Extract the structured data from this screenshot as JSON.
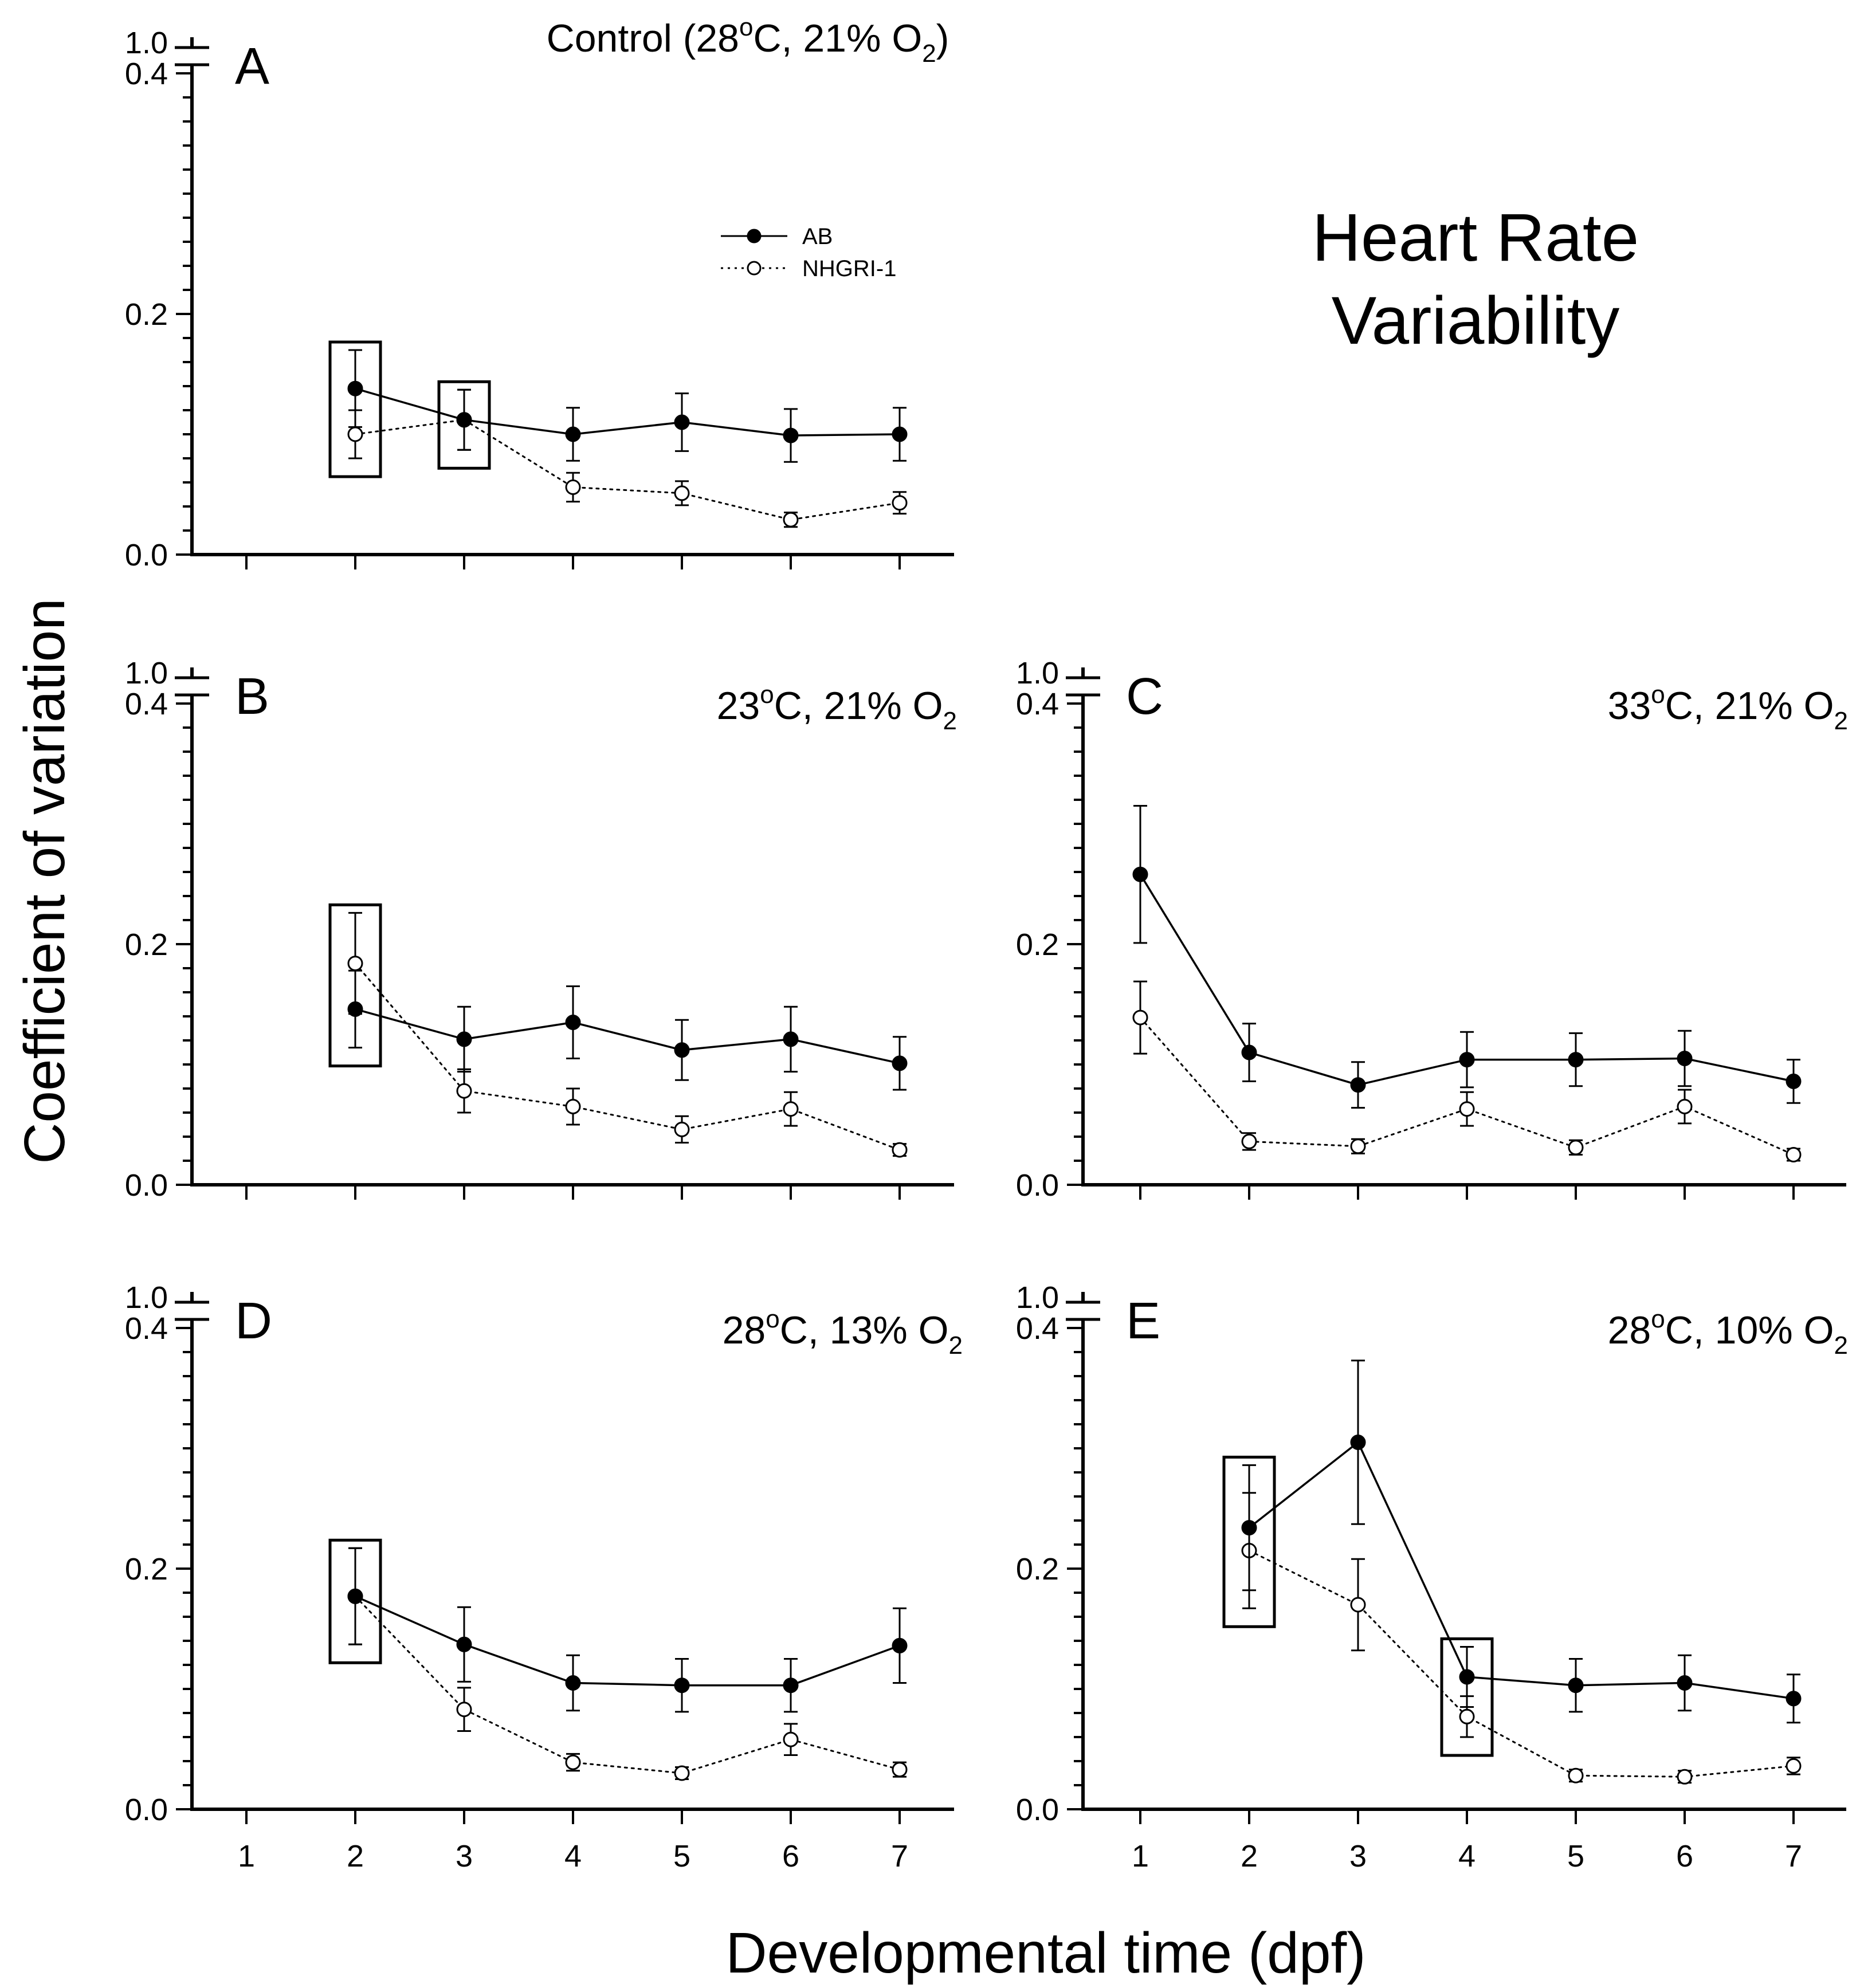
{
  "figure": {
    "title_line1": "Heart Rate",
    "title_line2": "Variability",
    "ylabel": "Coefficient of variation",
    "xlabel": "Developmental time (dpf)",
    "x_ticks": [
      "1",
      "2",
      "3",
      "4",
      "5",
      "6",
      "7"
    ],
    "y_ticks": [
      "0.0",
      "0.2",
      "0.4"
    ],
    "y_break_label": "1.0",
    "legend": [
      {
        "name": "AB",
        "marker": "filled-circle",
        "line": "solid"
      },
      {
        "name": "NHGRI-1",
        "marker": "open-circle",
        "line": "dotted"
      }
    ],
    "colors": {
      "line": "#000000",
      "background": "#ffffff"
    }
  },
  "chart_data": [
    {
      "type": "line",
      "panel": "A",
      "title_main": "Control (28",
      "title_sup": "o",
      "title_mid": "C, 21% O",
      "title_sub": "2",
      "title_end": ")",
      "x": [
        1,
        2,
        3,
        4,
        5,
        6,
        7
      ],
      "ylim": [
        0,
        0.4
      ],
      "series": [
        {
          "name": "AB",
          "x": [
            2,
            3,
            4,
            5,
            6,
            7
          ],
          "values": [
            0.138,
            0.112,
            0.1,
            0.11,
            0.099,
            0.1
          ],
          "errors": [
            0.032,
            0.025,
            0.022,
            0.024,
            0.022,
            0.022
          ]
        },
        {
          "name": "NHGRI-1",
          "x": [
            2,
            3,
            4,
            5,
            6,
            7
          ],
          "values": [
            0.1,
            0.112,
            0.056,
            0.051,
            0.029,
            0.043
          ],
          "errors": [
            0.02,
            0.025,
            0.012,
            0.01,
            0.006,
            0.009
          ]
        }
      ],
      "highlight_boxes": [
        2,
        3
      ]
    },
    {
      "type": "line",
      "panel": "B",
      "title_main": "23",
      "title_sup": "o",
      "title_mid": "C, 21% O",
      "title_sub": "2",
      "title_end": "",
      "x": [
        1,
        2,
        3,
        4,
        5,
        6,
        7
      ],
      "ylim": [
        0,
        0.4
      ],
      "series": [
        {
          "name": "AB",
          "x": [
            2,
            3,
            4,
            5,
            6,
            7
          ],
          "values": [
            0.146,
            0.121,
            0.135,
            0.112,
            0.121,
            0.101
          ],
          "errors": [
            0.032,
            0.027,
            0.03,
            0.025,
            0.027,
            0.022
          ]
        },
        {
          "name": "NHGRI-1",
          "x": [
            2,
            3,
            4,
            5,
            6,
            7
          ],
          "values": [
            0.184,
            0.078,
            0.065,
            0.046,
            0.063,
            0.029
          ],
          "errors": [
            0.042,
            0.018,
            0.015,
            0.011,
            0.014,
            0.005
          ]
        }
      ],
      "highlight_boxes": [
        2
      ]
    },
    {
      "type": "line",
      "panel": "C",
      "title_main": "33",
      "title_sup": "o",
      "title_mid": "C, 21% O",
      "title_sub": "2",
      "title_end": "",
      "x": [
        1,
        2,
        3,
        4,
        5,
        6,
        7
      ],
      "ylim": [
        0,
        0.4
      ],
      "series": [
        {
          "name": "AB",
          "x": [
            1,
            2,
            3,
            4,
            5,
            6,
            7
          ],
          "values": [
            0.258,
            0.11,
            0.083,
            0.104,
            0.104,
            0.105,
            0.086
          ],
          "errors": [
            0.057,
            0.024,
            0.019,
            0.023,
            0.022,
            0.023,
            0.018
          ]
        },
        {
          "name": "NHGRI-1",
          "x": [
            1,
            2,
            3,
            4,
            5,
            6,
            7
          ],
          "values": [
            0.139,
            0.036,
            0.032,
            0.063,
            0.031,
            0.065,
            0.025
          ],
          "errors": [
            0.03,
            0.007,
            0.006,
            0.014,
            0.006,
            0.014,
            0.005
          ]
        }
      ],
      "highlight_boxes": []
    },
    {
      "type": "line",
      "panel": "D",
      "title_main": "28",
      "title_sup": "o",
      "title_mid": "C, 13% O",
      "title_sub": "2",
      "title_end": "",
      "x": [
        1,
        2,
        3,
        4,
        5,
        6,
        7
      ],
      "ylim": [
        0,
        0.4
      ],
      "series": [
        {
          "name": "AB",
          "x": [
            2,
            3,
            4,
            5,
            6,
            7
          ],
          "values": [
            0.177,
            0.137,
            0.105,
            0.103,
            0.103,
            0.136
          ],
          "errors": [
            0.04,
            0.031,
            0.023,
            0.022,
            0.022,
            0.031
          ]
        },
        {
          "name": "NHGRI-1",
          "x": [
            2,
            3,
            4,
            5,
            6,
            7
          ],
          "values": [
            0.177,
            0.083,
            0.039,
            0.03,
            0.058,
            0.033
          ],
          "errors": [
            0.04,
            0.018,
            0.007,
            0.005,
            0.013,
            0.006
          ]
        }
      ],
      "highlight_boxes": [
        2
      ]
    },
    {
      "type": "line",
      "panel": "E",
      "title_main": "28",
      "title_sup": "o",
      "title_mid": "C, 10% O",
      "title_sub": "2",
      "title_end": "",
      "x": [
        1,
        2,
        3,
        4,
        5,
        6,
        7
      ],
      "ylim": [
        0,
        0.4
      ],
      "series": [
        {
          "name": "AB",
          "x": [
            2,
            3,
            4,
            5,
            6,
            7
          ],
          "values": [
            0.234,
            0.305,
            0.11,
            0.103,
            0.105,
            0.092
          ],
          "errors": [
            0.052,
            0.068,
            0.025,
            0.022,
            0.023,
            0.02
          ]
        },
        {
          "name": "NHGRI-1",
          "x": [
            2,
            3,
            4,
            5,
            6,
            7
          ],
          "values": [
            0.215,
            0.17,
            0.077,
            0.028,
            0.027,
            0.036
          ],
          "errors": [
            0.048,
            0.038,
            0.017,
            0.005,
            0.005,
            0.007
          ]
        }
      ],
      "highlight_boxes": [
        2,
        4
      ]
    }
  ]
}
